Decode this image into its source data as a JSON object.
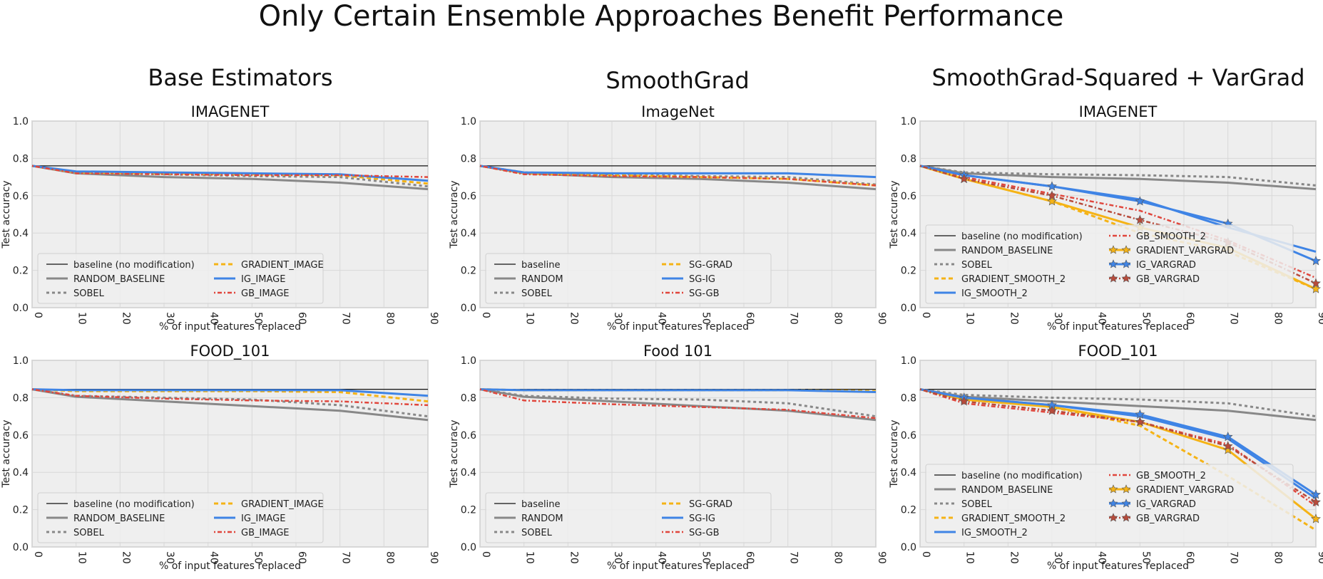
{
  "figure": {
    "title": "Only Certain Ensemble Approaches Benefit Performance",
    "columns": [
      "Base Estimators",
      "SmoothGrad",
      "SmoothGrad-Squared + VarGrad"
    ]
  },
  "colors": {
    "baseline": "#111111",
    "random": "#888888",
    "sobel": "#888888",
    "gradient": "#f5b316",
    "ig": "#3f84e5",
    "gb": "#e0463c",
    "gb_vargrad": "#b84a3a",
    "panel_bg": "#eeeeee",
    "grid": "#ffffff"
  },
  "chart_data": [
    {
      "type": "line",
      "title": "IMAGENET",
      "xlabel": "% of input features replaced",
      "ylabel": "Test accuracy",
      "xlim": [
        0,
        90
      ],
      "ylim": [
        0,
        1.0
      ],
      "grid": true,
      "legend": "lower-left",
      "xticks": [
        0,
        10,
        20,
        30,
        40,
        50,
        60,
        70,
        80,
        90
      ],
      "yticks": [
        0.0,
        0.2,
        0.4,
        0.6,
        0.8,
        1.0
      ],
      "x": [
        0,
        10,
        30,
        50,
        70,
        90
      ],
      "series": [
        {
          "name": "baseline (no modification)",
          "style": "baseline",
          "values": [
            0.76,
            0.76,
            0.76,
            0.76,
            0.76,
            0.76
          ]
        },
        {
          "name": "RANDOM_BASELINE",
          "style": "random",
          "values": [
            0.76,
            0.72,
            0.7,
            0.69,
            0.67,
            0.635
          ]
        },
        {
          "name": "SOBEL",
          "style": "sobel",
          "values": [
            0.76,
            0.725,
            0.715,
            0.705,
            0.7,
            0.65
          ]
        },
        {
          "name": "GRADIENT_IMAGE",
          "style": "gradient",
          "values": [
            0.76,
            0.725,
            0.72,
            0.715,
            0.71,
            0.665
          ]
        },
        {
          "name": "IG_IMAGE",
          "style": "ig",
          "values": [
            0.76,
            0.73,
            0.725,
            0.72,
            0.715,
            0.68
          ]
        },
        {
          "name": "GB_IMAGE",
          "style": "gb",
          "values": [
            0.76,
            0.72,
            0.715,
            0.71,
            0.71,
            0.7
          ]
        }
      ]
    },
    {
      "type": "line",
      "title": "ImageNet",
      "xlabel": "% of input features replaced",
      "ylabel": "Test accuracy",
      "xlim": [
        0,
        90
      ],
      "ylim": [
        0,
        1.0
      ],
      "grid": true,
      "legend": "lower-left",
      "xticks": [
        0,
        10,
        20,
        30,
        40,
        50,
        60,
        70,
        80,
        90
      ],
      "yticks": [
        0.0,
        0.2,
        0.4,
        0.6,
        0.8,
        1.0
      ],
      "x": [
        0,
        10,
        30,
        50,
        70,
        90
      ],
      "series": [
        {
          "name": "baseline",
          "style": "baseline",
          "values": [
            0.76,
            0.76,
            0.76,
            0.76,
            0.76,
            0.76
          ]
        },
        {
          "name": "RANDOM",
          "style": "random",
          "values": [
            0.76,
            0.72,
            0.7,
            0.69,
            0.67,
            0.635
          ]
        },
        {
          "name": "SOBEL",
          "style": "sobel",
          "values": [
            0.76,
            0.725,
            0.715,
            0.705,
            0.7,
            0.66
          ]
        },
        {
          "name": "SG-GRAD",
          "style": "gradient",
          "values": [
            0.76,
            0.72,
            0.71,
            0.7,
            0.69,
            0.655
          ]
        },
        {
          "name": "SG-IG",
          "style": "ig",
          "values": [
            0.76,
            0.725,
            0.72,
            0.72,
            0.72,
            0.7
          ]
        },
        {
          "name": "SG-GB",
          "style": "gb",
          "values": [
            0.76,
            0.715,
            0.705,
            0.7,
            0.69,
            0.655
          ]
        }
      ]
    },
    {
      "type": "line",
      "title": "IMAGENET",
      "xlabel": "% of input features replaced",
      "ylabel": "Test accuracy",
      "xlim": [
        0,
        90
      ],
      "ylim": [
        0,
        1.0
      ],
      "grid": true,
      "legend": "lower-left",
      "xticks": [
        0,
        10,
        20,
        30,
        40,
        50,
        60,
        70,
        80,
        90
      ],
      "yticks": [
        0.0,
        0.2,
        0.4,
        0.6,
        0.8,
        1.0
      ],
      "x": [
        0,
        10,
        30,
        50,
        70,
        90
      ],
      "series": [
        {
          "name": "baseline (no modification)",
          "style": "baseline",
          "values": [
            0.76,
            0.76,
            0.76,
            0.76,
            0.76,
            0.76
          ]
        },
        {
          "name": "RANDOM_BASELINE",
          "style": "random",
          "values": [
            0.76,
            0.72,
            0.7,
            0.69,
            0.67,
            0.635
          ]
        },
        {
          "name": "SOBEL",
          "style": "sobel",
          "values": [
            0.76,
            0.725,
            0.715,
            0.71,
            0.7,
            0.655
          ]
        },
        {
          "name": "GRADIENT_SMOOTH_2",
          "style": "gradient",
          "values": [
            0.76,
            0.69,
            0.57,
            0.4,
            0.3,
            0.1
          ]
        },
        {
          "name": "IG_SMOOTH_2",
          "style": "ig",
          "values": [
            0.76,
            0.71,
            0.65,
            0.58,
            0.43,
            0.3
          ]
        },
        {
          "name": "GB_SMOOTH_2",
          "style": "gb",
          "values": [
            0.76,
            0.7,
            0.61,
            0.52,
            0.36,
            0.16
          ]
        },
        {
          "name": "GRADIENT_VARGRAD",
          "style": "gradient_star",
          "values": [
            0.76,
            0.69,
            0.57,
            0.43,
            0.32,
            0.1
          ]
        },
        {
          "name": "IG_VARGRAD",
          "style": "ig_star",
          "values": [
            0.76,
            0.71,
            0.65,
            0.57,
            0.45,
            0.25
          ]
        },
        {
          "name": "GB_VARGRAD",
          "style": "gb_star",
          "values": [
            0.76,
            0.69,
            0.6,
            0.47,
            0.35,
            0.13
          ]
        }
      ]
    },
    {
      "type": "line",
      "title": "FOOD_101",
      "xlabel": "% of input features replaced",
      "ylabel": "Test accuracy",
      "xlim": [
        0,
        90
      ],
      "ylim": [
        0,
        1.0
      ],
      "grid": true,
      "legend": "lower-left",
      "xticks": [
        0,
        10,
        20,
        30,
        40,
        50,
        60,
        70,
        80,
        90
      ],
      "yticks": [
        0.0,
        0.2,
        0.4,
        0.6,
        0.8,
        1.0
      ],
      "x": [
        0,
        10,
        30,
        50,
        70,
        90
      ],
      "series": [
        {
          "name": "baseline (no modification)",
          "style": "baseline",
          "values": [
            0.845,
            0.845,
            0.845,
            0.845,
            0.845,
            0.845
          ]
        },
        {
          "name": "RANDOM_BASELINE",
          "style": "random",
          "values": [
            0.845,
            0.805,
            0.78,
            0.755,
            0.73,
            0.68
          ]
        },
        {
          "name": "SOBEL",
          "style": "sobel",
          "values": [
            0.845,
            0.81,
            0.8,
            0.79,
            0.76,
            0.7
          ]
        },
        {
          "name": "GRADIENT_IMAGE",
          "style": "gradient",
          "values": [
            0.845,
            0.835,
            0.835,
            0.835,
            0.83,
            0.78
          ]
        },
        {
          "name": "IG_IMAGE",
          "style": "ig",
          "values": [
            0.845,
            0.84,
            0.84,
            0.84,
            0.84,
            0.81
          ]
        },
        {
          "name": "GB_IMAGE",
          "style": "gb",
          "values": [
            0.845,
            0.81,
            0.795,
            0.785,
            0.78,
            0.76
          ]
        }
      ]
    },
    {
      "type": "line",
      "title": "Food 101",
      "xlabel": "% of input features replaced",
      "ylabel": "Test accuracy",
      "xlim": [
        0,
        90
      ],
      "ylim": [
        0,
        1.0
      ],
      "grid": true,
      "legend": "lower-left",
      "xticks": [
        0,
        10,
        20,
        30,
        40,
        50,
        60,
        70,
        80,
        90
      ],
      "yticks": [
        0.0,
        0.2,
        0.4,
        0.6,
        0.8,
        1.0
      ],
      "x": [
        0,
        10,
        30,
        50,
        70,
        90
      ],
      "series": [
        {
          "name": "baseline",
          "style": "baseline",
          "values": [
            0.845,
            0.845,
            0.845,
            0.845,
            0.845,
            0.845
          ]
        },
        {
          "name": "RANDOM",
          "style": "random",
          "values": [
            0.845,
            0.805,
            0.78,
            0.755,
            0.73,
            0.68
          ]
        },
        {
          "name": "SOBEL",
          "style": "sobel",
          "values": [
            0.845,
            0.81,
            0.795,
            0.79,
            0.77,
            0.7
          ]
        },
        {
          "name": "SG-GRAD",
          "style": "gradient",
          "values": [
            0.845,
            0.84,
            0.84,
            0.84,
            0.84,
            0.835
          ]
        },
        {
          "name": "SG-IG",
          "style": "ig",
          "values": [
            0.845,
            0.84,
            0.84,
            0.84,
            0.84,
            0.83
          ]
        },
        {
          "name": "SG-GB",
          "style": "gb",
          "values": [
            0.845,
            0.785,
            0.765,
            0.75,
            0.735,
            0.69
          ]
        }
      ]
    },
    {
      "type": "line",
      "title": "FOOD_101",
      "xlabel": "% of input features replaced",
      "ylabel": "Test accuracy",
      "xlim": [
        0,
        90
      ],
      "ylim": [
        0,
        1.0
      ],
      "grid": true,
      "legend": "lower-left",
      "xticks": [
        0,
        10,
        20,
        30,
        40,
        50,
        60,
        70,
        80,
        90
      ],
      "yticks": [
        0.0,
        0.2,
        0.4,
        0.6,
        0.8,
        1.0
      ],
      "x": [
        0,
        10,
        30,
        50,
        70,
        90
      ],
      "series": [
        {
          "name": "baseline (no modification)",
          "style": "baseline",
          "values": [
            0.845,
            0.845,
            0.845,
            0.845,
            0.845,
            0.845
          ]
        },
        {
          "name": "RANDOM_BASELINE",
          "style": "random",
          "values": [
            0.845,
            0.805,
            0.78,
            0.755,
            0.73,
            0.68
          ]
        },
        {
          "name": "SOBEL",
          "style": "sobel",
          "values": [
            0.845,
            0.815,
            0.8,
            0.79,
            0.77,
            0.7
          ]
        },
        {
          "name": "GRADIENT_SMOOTH_2",
          "style": "gradient",
          "values": [
            0.845,
            0.8,
            0.75,
            0.65,
            0.38,
            0.09
          ]
        },
        {
          "name": "IG_SMOOTH_2",
          "style": "ig",
          "values": [
            0.845,
            0.8,
            0.76,
            0.7,
            0.58,
            0.26
          ]
        },
        {
          "name": "GB_SMOOTH_2",
          "style": "gb",
          "values": [
            0.845,
            0.77,
            0.72,
            0.67,
            0.55,
            0.22
          ]
        },
        {
          "name": "GRADIENT_VARGRAD",
          "style": "gradient_star",
          "values": [
            0.845,
            0.79,
            0.75,
            0.67,
            0.52,
            0.15
          ]
        },
        {
          "name": "IG_VARGRAD",
          "style": "ig_star",
          "values": [
            0.845,
            0.8,
            0.76,
            0.71,
            0.59,
            0.28
          ]
        },
        {
          "name": "GB_VARGRAD",
          "style": "gb_star",
          "values": [
            0.845,
            0.78,
            0.73,
            0.67,
            0.54,
            0.24
          ]
        }
      ]
    }
  ]
}
